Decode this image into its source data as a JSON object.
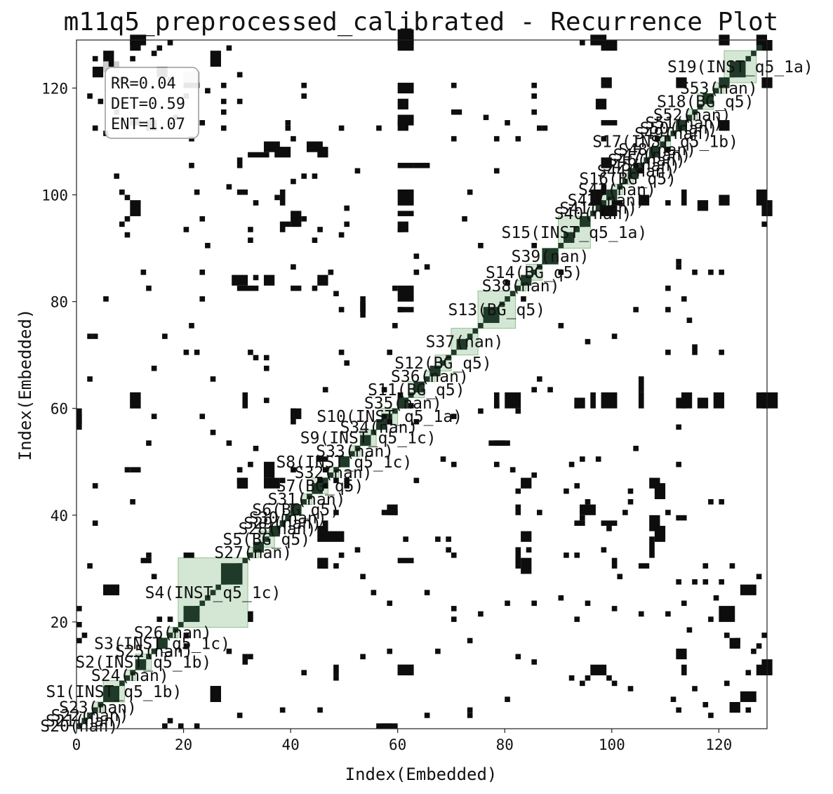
{
  "chart_data": {
    "type": "heatmap",
    "subtype": "recurrence-plot",
    "title": "m11q5_preprocessed_calibrated - Recurrence Plot",
    "xlabel": "Index(Embedded)",
    "ylabel": "Index(Embedded)",
    "xlim": [
      0,
      129
    ],
    "ylim": [
      0,
      129
    ],
    "xticks": [
      0,
      20,
      40,
      60,
      80,
      100,
      120
    ],
    "yticks": [
      20,
      40,
      60,
      80,
      100,
      120
    ],
    "grid": false,
    "colors": {
      "recurrence": "#0d0d0d",
      "segment_fill": "#c6dfc6",
      "segment_stroke": "#8fbf8f",
      "diagonal_dark": "#1f3a28"
    },
    "stats": {
      "rr": "RR=0.04",
      "det": "DET=0.59",
      "ent": "ENT=1.07",
      "placement": "top-left"
    },
    "segments": [
      {
        "label": "S20(nan)",
        "start": 0,
        "end": 1
      },
      {
        "label": "S21(nan)",
        "start": 1,
        "end": 2
      },
      {
        "label": "S22(nan)",
        "start": 2,
        "end": 3
      },
      {
        "label": "S23(nan)",
        "start": 3,
        "end": 5
      },
      {
        "label": "S1(INST_q5_1b)",
        "start": 5,
        "end": 9
      },
      {
        "label": "S24(nan)",
        "start": 9,
        "end": 11
      },
      {
        "label": "S2(INST_q5_1b)",
        "start": 11,
        "end": 14
      },
      {
        "label": "S25(nan)",
        "start": 14,
        "end": 15
      },
      {
        "label": "S3(INST_q5_1c)",
        "start": 15,
        "end": 17
      },
      {
        "label": "S26(nan)",
        "start": 17,
        "end": 19
      },
      {
        "label": "S4(INST_q5_1c)",
        "start": 19,
        "end": 32
      },
      {
        "label": "S27(nan)",
        "start": 32,
        "end": 34
      },
      {
        "label": "S5(BG_q5)",
        "start": 34,
        "end": 37
      },
      {
        "label": "S28(nan)",
        "start": 37,
        "end": 38
      },
      {
        "label": "S29(nan)",
        "start": 38,
        "end": 39
      },
      {
        "label": "S30(nan)",
        "start": 39,
        "end": 40
      },
      {
        "label": "S6(BG_q5)",
        "start": 40,
        "end": 42
      },
      {
        "label": "S31(nan)",
        "start": 42,
        "end": 44
      },
      {
        "label": "S7(BG_q5)",
        "start": 44,
        "end": 47
      },
      {
        "label": "S32(nan)",
        "start": 47,
        "end": 49
      },
      {
        "label": "S8(INST_q5_1c)",
        "start": 49,
        "end": 51
      },
      {
        "label": "S33(nan)",
        "start": 51,
        "end": 53
      },
      {
        "label": "S9(INST_q5_1c)",
        "start": 53,
        "end": 56
      },
      {
        "label": "S34(nan)",
        "start": 56,
        "end": 57
      },
      {
        "label": "S10(INST_q5_1a)",
        "start": 57,
        "end": 60
      },
      {
        "label": "S35(nan)",
        "start": 60,
        "end": 62
      },
      {
        "label": "S11(BG_q5)",
        "start": 62,
        "end": 65
      },
      {
        "label": "S36(nan)",
        "start": 65,
        "end": 67
      },
      {
        "label": "S12(BG_q5)",
        "start": 67,
        "end": 70
      },
      {
        "label": "S37(nan)",
        "start": 70,
        "end": 75
      },
      {
        "label": "S13(BG_q5)",
        "start": 75,
        "end": 82
      },
      {
        "label": "S38(nan)",
        "start": 82,
        "end": 84
      },
      {
        "label": "S14(BG_q5)",
        "start": 84,
        "end": 87
      },
      {
        "label": "S39(nan)",
        "start": 87,
        "end": 90
      },
      {
        "label": "S15(INST_q5_1a)",
        "start": 90,
        "end": 96
      },
      {
        "label": "S40(nan)",
        "start": 96,
        "end": 97
      },
      {
        "label": "S41(nan)",
        "start": 97,
        "end": 98
      },
      {
        "label": "S42(nan)",
        "start": 98,
        "end": 100
      },
      {
        "label": "S43(nan)",
        "start": 100,
        "end": 102
      },
      {
        "label": "S16(BG_q5)",
        "start": 102,
        "end": 104
      },
      {
        "label": "S44(nan)",
        "start": 104,
        "end": 105
      },
      {
        "label": "S45(nan)",
        "start": 105,
        "end": 106
      },
      {
        "label": "S46(nan)",
        "start": 106,
        "end": 107
      },
      {
        "label": "S47(nan)",
        "start": 107,
        "end": 108
      },
      {
        "label": "S48(nan)",
        "start": 108,
        "end": 109
      },
      {
        "label": "S17(INST_q5_1b)",
        "start": 109,
        "end": 111
      },
      {
        "label": "S49(nan)",
        "start": 111,
        "end": 112
      },
      {
        "label": "S50(nan)",
        "start": 112,
        "end": 113
      },
      {
        "label": "S51(nan)",
        "start": 113,
        "end": 114
      },
      {
        "label": "S52(nan)",
        "start": 114,
        "end": 116
      },
      {
        "label": "S18(BG_q5)",
        "start": 116,
        "end": 119
      },
      {
        "label": "S53(nan)",
        "start": 119,
        "end": 121
      },
      {
        "label": "S19(INST_q5_1a)",
        "start": 121,
        "end": 127
      }
    ],
    "diagonal_blocks": [
      [
        5,
        8
      ],
      [
        11,
        13
      ],
      [
        15,
        17
      ],
      [
        20,
        23
      ],
      [
        24,
        25
      ],
      [
        27,
        31
      ],
      [
        33,
        35
      ],
      [
        36,
        38
      ],
      [
        40,
        42
      ],
      [
        44,
        46
      ],
      [
        49,
        51
      ],
      [
        53,
        55
      ],
      [
        56,
        58
      ],
      [
        60,
        62
      ],
      [
        63,
        65
      ],
      [
        66,
        68
      ],
      [
        71,
        73
      ],
      [
        76,
        79
      ],
      [
        83,
        85
      ],
      [
        87,
        90
      ],
      [
        91,
        93
      ],
      [
        94,
        96
      ],
      [
        99,
        101
      ],
      [
        103,
        105
      ],
      [
        107,
        109
      ],
      [
        112,
        114
      ],
      [
        117,
        119
      ],
      [
        120,
        122
      ],
      [
        122,
        125
      ]
    ],
    "recurrence_blocks": [
      [
        10,
        128,
        3,
        2
      ],
      [
        60,
        128,
        3,
        3
      ],
      [
        96,
        128,
        3,
        2
      ],
      [
        120,
        128,
        2,
        2
      ],
      [
        127,
        128,
        2,
        2
      ],
      [
        3,
        122,
        2,
        2
      ],
      [
        15,
        122,
        2,
        2
      ],
      [
        13,
        112,
        2,
        2
      ],
      [
        60,
        112,
        2,
        2
      ],
      [
        60,
        116,
        2,
        2
      ],
      [
        97,
        116,
        2,
        2
      ],
      [
        120,
        112,
        2,
        2
      ],
      [
        32,
        107,
        4,
        1
      ],
      [
        35,
        108,
        3,
        2
      ],
      [
        43,
        108,
        3,
        2
      ],
      [
        60,
        98,
        3,
        3
      ],
      [
        38,
        98,
        1,
        3
      ],
      [
        60,
        93,
        2,
        2
      ],
      [
        38,
        93,
        1,
        2
      ],
      [
        29,
        83,
        3,
        2
      ],
      [
        35,
        83,
        2,
        2
      ],
      [
        45,
        83,
        2,
        2
      ],
      [
        53,
        78,
        1,
        3
      ],
      [
        60,
        78,
        3,
        1
      ],
      [
        30,
        45,
        2,
        2
      ],
      [
        45,
        45,
        2,
        2
      ],
      [
        35,
        47,
        2,
        3
      ],
      [
        50,
        45,
        1,
        2
      ],
      [
        45,
        35,
        2,
        3
      ],
      [
        45,
        30,
        2,
        2
      ],
      [
        58,
        40,
        2,
        2
      ],
      [
        82,
        40,
        1,
        2
      ],
      [
        82,
        30,
        1,
        4
      ],
      [
        94,
        40,
        3,
        2
      ],
      [
        107,
        37,
        2,
        3
      ],
      [
        107,
        45,
        2,
        2
      ],
      [
        120,
        20,
        3,
        3
      ],
      [
        124,
        25,
        3,
        2
      ],
      [
        60,
        10,
        3,
        2
      ],
      [
        96,
        10,
        3,
        2
      ],
      [
        127,
        10,
        2,
        2
      ],
      [
        25,
        5,
        2,
        3
      ],
      [
        31,
        12,
        1,
        2
      ],
      [
        124,
        5,
        3,
        2
      ],
      [
        5,
        25,
        3,
        2
      ],
      [
        0,
        57,
        1,
        3
      ],
      [
        10,
        60,
        2,
        3
      ],
      [
        31,
        60,
        1,
        3
      ],
      [
        80,
        60,
        3,
        3
      ],
      [
        77,
        53,
        3,
        1
      ],
      [
        57,
        40,
        3,
        1
      ],
      [
        119,
        60,
        2,
        3
      ],
      [
        127,
        60,
        2,
        3
      ],
      [
        96,
        60,
        1,
        3
      ],
      [
        105,
        60,
        1,
        3
      ],
      [
        113,
        60,
        2,
        3
      ],
      [
        127,
        98,
        2,
        3
      ],
      [
        120,
        98,
        2,
        2
      ],
      [
        113,
        98,
        1,
        3
      ],
      [
        105,
        98,
        2,
        2
      ],
      [
        96,
        98,
        2,
        3
      ],
      [
        56,
        0,
        3,
        1
      ],
      [
        70,
        115,
        2,
        1
      ],
      [
        63,
        105,
        3,
        1
      ],
      [
        10,
        48,
        2,
        1
      ],
      [
        100,
        30,
        1,
        2
      ],
      [
        100,
        98,
        2,
        1
      ],
      [
        105,
        30,
        2,
        1
      ],
      [
        113,
        10,
        1,
        2
      ],
      [
        32,
        20,
        1,
        2
      ]
    ],
    "recurrence_points": [
      [
        17,
        128
      ],
      [
        94,
        128
      ],
      [
        99,
        128
      ],
      [
        16,
        123
      ],
      [
        17,
        121
      ],
      [
        24,
        119
      ],
      [
        2,
        118
      ],
      [
        27,
        117
      ],
      [
        42,
        118
      ],
      [
        42,
        120
      ],
      [
        3,
        112
      ],
      [
        27,
        112
      ],
      [
        39,
        112
      ],
      [
        49,
        112
      ],
      [
        56,
        112
      ],
      [
        87,
        112
      ],
      [
        85,
        118
      ],
      [
        98,
        110
      ],
      [
        105,
        104
      ],
      [
        110,
        108
      ],
      [
        44,
        103
      ],
      [
        40,
        102
      ],
      [
        28,
        101
      ],
      [
        37,
        99
      ],
      [
        9,
        99
      ],
      [
        8,
        94
      ],
      [
        9,
        95
      ],
      [
        20,
        93
      ],
      [
        32,
        93
      ],
      [
        45,
        93
      ],
      [
        39,
        94
      ],
      [
        50,
        94
      ],
      [
        60,
        93
      ],
      [
        75,
        90
      ],
      [
        65,
        86
      ],
      [
        80,
        83
      ],
      [
        90,
        85
      ],
      [
        115,
        85
      ],
      [
        120,
        85
      ],
      [
        112,
        86
      ],
      [
        110,
        82
      ],
      [
        113,
        80
      ],
      [
        104,
        78
      ],
      [
        110,
        78
      ],
      [
        114,
        76
      ],
      [
        100,
        73
      ],
      [
        95,
        72
      ],
      [
        110,
        70
      ],
      [
        120,
        70
      ],
      [
        2,
        73
      ],
      [
        16,
        73
      ],
      [
        20,
        70
      ],
      [
        33,
        69
      ],
      [
        50,
        68
      ],
      [
        35,
        67
      ],
      [
        60,
        62
      ],
      [
        58,
        57
      ],
      [
        63,
        57
      ],
      [
        70,
        58
      ],
      [
        75,
        59
      ],
      [
        78,
        60
      ],
      [
        82,
        59
      ],
      [
        85,
        63
      ],
      [
        88,
        63
      ],
      [
        104,
        52
      ],
      [
        97,
        50
      ],
      [
        92,
        49
      ],
      [
        85,
        47
      ],
      [
        78,
        49
      ],
      [
        81,
        48
      ],
      [
        70,
        49
      ],
      [
        40,
        48
      ],
      [
        30,
        48
      ],
      [
        38,
        46
      ],
      [
        46,
        48
      ],
      [
        63,
        46
      ],
      [
        82,
        44
      ],
      [
        91,
        44
      ],
      [
        95,
        42
      ],
      [
        103,
        42
      ],
      [
        110,
        40
      ],
      [
        113,
        39
      ],
      [
        86,
        40
      ],
      [
        98,
        33
      ],
      [
        91,
        32
      ],
      [
        84,
        33
      ],
      [
        70,
        32
      ],
      [
        69,
        35
      ],
      [
        61,
        35
      ],
      [
        52,
        33
      ],
      [
        49,
        32
      ],
      [
        46,
        30
      ],
      [
        53,
        28
      ],
      [
        55,
        25
      ],
      [
        58,
        23
      ],
      [
        65,
        25
      ],
      [
        70,
        22
      ],
      [
        75,
        21
      ],
      [
        80,
        23
      ],
      [
        85,
        23
      ],
      [
        90,
        24
      ],
      [
        95,
        23
      ],
      [
        100,
        22
      ],
      [
        105,
        21
      ],
      [
        110,
        21
      ],
      [
        114,
        18
      ],
      [
        118,
        20
      ],
      [
        113,
        23
      ],
      [
        115,
        27
      ],
      [
        120,
        27
      ],
      [
        117,
        30
      ],
      [
        127,
        28
      ],
      [
        122,
        30
      ],
      [
        15,
        20
      ],
      [
        20,
        17
      ],
      [
        28,
        14
      ],
      [
        32,
        13
      ],
      [
        42,
        10
      ],
      [
        48,
        9
      ],
      [
        53,
        13
      ],
      [
        58,
        14
      ],
      [
        67,
        14
      ],
      [
        82,
        13
      ],
      [
        85,
        12
      ],
      [
        92,
        9
      ],
      [
        100,
        8
      ],
      [
        103,
        7
      ],
      [
        111,
        5
      ],
      [
        117,
        4
      ],
      [
        115,
        7
      ],
      [
        121,
        8
      ],
      [
        125,
        10
      ],
      [
        126,
        14
      ],
      [
        127,
        15
      ],
      [
        125,
        3
      ],
      [
        80,
        5
      ],
      [
        73,
        3
      ],
      [
        65,
        2
      ],
      [
        45,
        3
      ],
      [
        38,
        3
      ],
      [
        30,
        2
      ],
      [
        16,
        0
      ],
      [
        17,
        1
      ],
      [
        19,
        0
      ],
      [
        22,
        0
      ]
    ],
    "gray_blocks": [
      [
        5,
        123,
        1,
        2
      ],
      [
        7,
        123,
        1,
        2
      ],
      [
        20,
        121,
        3,
        2
      ]
    ]
  }
}
